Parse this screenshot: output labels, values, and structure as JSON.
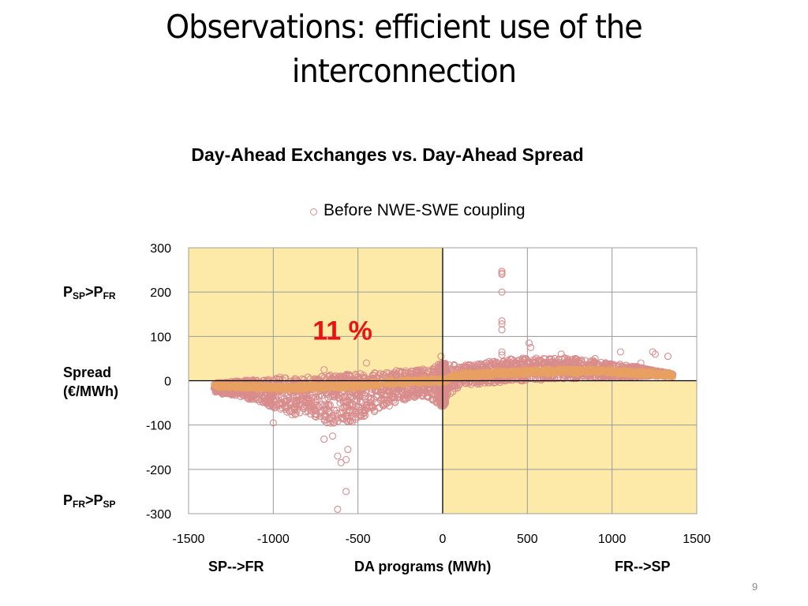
{
  "slide": {
    "title_line1": "Observations: efficient use of the",
    "title_line2": "interconnection",
    "page_number": "9"
  },
  "chart_data": {
    "type": "scatter",
    "title": "Day-Ahead Exchanges vs. Day-Ahead Spread",
    "xlabel": "DA programs (MWh)",
    "xlabel_left": "SP-->FR",
    "xlabel_right": "FR-->SP",
    "ylabel": "Spread (€/MWh)",
    "ylabel_line1": "Spread",
    "ylabel_line2": "(€/MWh)",
    "ylabel_top_annotation": {
      "p1": "P",
      "s1": "SP",
      "gt": ">",
      "p2": "P",
      "s2": "FR"
    },
    "ylabel_bottom_annotation": {
      "p1": "P",
      "s1": "FR",
      "gt": ">",
      "p2": "P",
      "s2": "SP"
    },
    "xlim": [
      -1500,
      1500
    ],
    "ylim": [
      -300,
      300
    ],
    "xticks": [
      -1500,
      -1000,
      -500,
      0,
      500,
      1000,
      1500
    ],
    "yticks": [
      300,
      200,
      100,
      0,
      -100,
      -200,
      -300
    ],
    "xtick_labels": [
      "-1500",
      "-1000",
      "-500",
      "0",
      "500",
      "1000",
      "1500"
    ],
    "ytick_labels": [
      "300",
      "200",
      "100",
      "0",
      "-100",
      "-200",
      "-300"
    ],
    "grid": true,
    "legend": {
      "position": "top-center",
      "entries": [
        "Before NWE-SWE coupling"
      ]
    },
    "annotation": {
      "text": "11 %",
      "x": -750,
      "y": 150,
      "color": "#ee1111"
    },
    "highlight_quadrants": [
      {
        "name": "top-left",
        "x": [
          -1500,
          0
        ],
        "y": [
          0,
          300
        ],
        "color": "#fde9a8"
      },
      {
        "name": "bottom-right",
        "x": [
          0,
          1500
        ],
        "y": [
          -300,
          0
        ],
        "color": "#fde9a8"
      }
    ],
    "colors": {
      "series_pink": "#d98c8c",
      "series_orange": "#e8a062",
      "grid": "#9a9a9a"
    },
    "series": [
      {
        "name": "Before NWE-SWE coupling",
        "marker": "open-circle",
        "bulk_profile": {
          "description": "dense cloud along x-axis; approximate envelope in data units",
          "x": [
            -1350,
            -1200,
            -1000,
            -900,
            -800,
            -700,
            -600,
            -500,
            -400,
            -300,
            -200,
            -100,
            0,
            100,
            200,
            300,
            400,
            500,
            600,
            700,
            800,
            900,
            1000,
            1100,
            1200,
            1300,
            1360
          ],
          "upper": [
            -5,
            0,
            5,
            8,
            10,
            12,
            14,
            16,
            20,
            22,
            25,
            28,
            40,
            35,
            38,
            45,
            50,
            52,
            50,
            52,
            50,
            45,
            40,
            35,
            28,
            20,
            15
          ],
          "lower": [
            -25,
            -35,
            -60,
            -80,
            -70,
            -95,
            -100,
            -90,
            -70,
            -55,
            -40,
            -35,
            -60,
            -10,
            -8,
            -5,
            -2,
            0,
            2,
            4,
            5,
            6,
            6,
            8,
            10,
            10,
            10
          ],
          "center": [
            -10,
            -12,
            -15,
            -15,
            -15,
            -12,
            -12,
            -10,
            -8,
            -5,
            -2,
            0,
            0,
            12,
            14,
            16,
            18,
            20,
            20,
            22,
            22,
            22,
            20,
            18,
            16,
            14,
            12
          ]
        },
        "outliers": [
          [
            350,
            247
          ],
          [
            350,
            243
          ],
          [
            350,
            240
          ],
          [
            350,
            200
          ],
          [
            350,
            135
          ],
          [
            350,
            128
          ],
          [
            350,
            115
          ],
          [
            350,
            65
          ],
          [
            350,
            58
          ],
          [
            -620,
            -290
          ],
          [
            -570,
            -250
          ],
          [
            -600,
            -185
          ],
          [
            -570,
            -178
          ],
          [
            -620,
            -170
          ],
          [
            -560,
            -155
          ],
          [
            -650,
            -125
          ],
          [
            -700,
            -132
          ],
          [
            -1300,
            -30
          ],
          [
            -1000,
            -95
          ],
          [
            -850,
            -45
          ],
          [
            -450,
            40
          ],
          [
            -10,
            55
          ],
          [
            -700,
            25
          ],
          [
            -960,
            8
          ],
          [
            520,
            75
          ],
          [
            510,
            85
          ],
          [
            700,
            60
          ],
          [
            1050,
            65
          ],
          [
            1240,
            65
          ],
          [
            1255,
            60
          ],
          [
            1330,
            55
          ],
          [
            1170,
            40
          ],
          [
            900,
            50
          ],
          [
            -30,
            -50
          ],
          [
            -20,
            -40
          ]
        ]
      }
    ]
  }
}
